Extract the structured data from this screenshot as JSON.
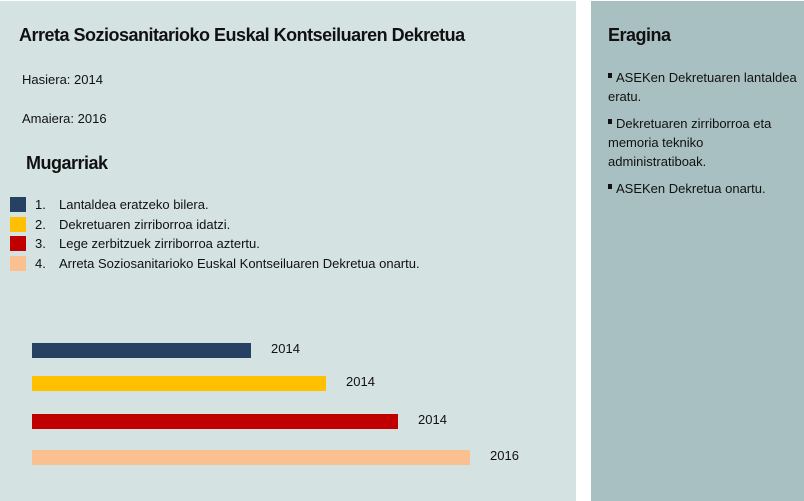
{
  "main": {
    "title": "Arreta Soziosanitarioko  Euskal  Kontseiluaren Dekretua",
    "start": "Hasiera: 2014",
    "end": "Amaiera: 2016",
    "milestones_title": "Mugarriak",
    "milestones": [
      {
        "num": "1.",
        "label": "Lantaldea eratzeko bilera.",
        "year": "2014",
        "color": "#264161"
      },
      {
        "num": "2.",
        "label": "Dekretuaren zirriborroa idatzi.",
        "year": "2014",
        "color": "#ffc000"
      },
      {
        "num": "3.",
        "label": "Lege zerbitzuek zirriborroa aztertu.",
        "year": "2014",
        "color": "#c00000"
      },
      {
        "num": "4.",
        "label": "Arreta Soziosanitarioko Euskal Kontseiluaren Dekretua onartu.",
        "year": "2016",
        "color": "#fac090"
      }
    ]
  },
  "side": {
    "title": "Eragina",
    "items": [
      "ASEKen Dekretuaren lantaldea eratu.",
      "Dekretuaren zirriborroa eta memoria tekniko administratiboak.",
      "ASEKen Dekretua onartu."
    ]
  }
}
